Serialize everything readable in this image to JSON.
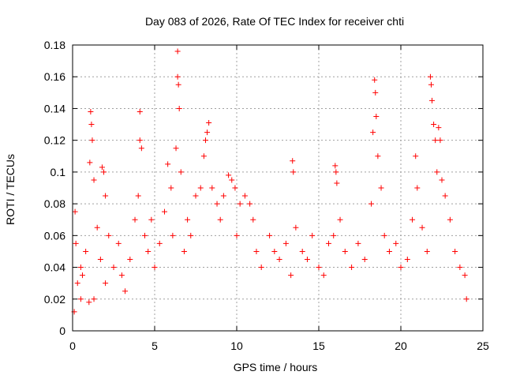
{
  "chart_data": {
    "type": "scatter",
    "title": "Day 083 of 2026, Rate Of TEC Index for receiver chti",
    "xlabel": "GPS time / hours",
    "ylabel": "ROTI / TECUs",
    "xlim": [
      0,
      25
    ],
    "ylim": [
      0,
      0.18
    ],
    "x_ticks": [
      0,
      5,
      10,
      15,
      20,
      25
    ],
    "x_tick_labels": [
      "0",
      "5",
      "10",
      "15",
      "20",
      "25"
    ],
    "y_ticks": [
      0,
      0.02,
      0.04,
      0.06,
      0.08,
      0.1,
      0.12,
      0.14,
      0.16,
      0.18
    ],
    "y_tick_labels": [
      "0",
      "0.02",
      "0.04",
      "0.06",
      "0.08",
      "0.1",
      "0.12",
      "0.14",
      "0.16",
      "0.18"
    ],
    "grid": true,
    "marker": "plus",
    "color": "#ff0000",
    "series": [
      {
        "points": [
          [
            0.1,
            0.012
          ],
          [
            0.15,
            0.075
          ],
          [
            0.2,
            0.055
          ],
          [
            0.3,
            0.03
          ],
          [
            0.5,
            0.02
          ],
          [
            0.5,
            0.04
          ],
          [
            0.6,
            0.035
          ],
          [
            0.8,
            0.05
          ],
          [
            1.0,
            0.018
          ],
          [
            1.05,
            0.106
          ],
          [
            1.1,
            0.138
          ],
          [
            1.15,
            0.13
          ],
          [
            1.2,
            0.12
          ],
          [
            1.3,
            0.095
          ],
          [
            1.3,
            0.02
          ],
          [
            1.5,
            0.065
          ],
          [
            1.7,
            0.045
          ],
          [
            1.8,
            0.103
          ],
          [
            1.9,
            0.1
          ],
          [
            2.0,
            0.085
          ],
          [
            2.0,
            0.03
          ],
          [
            2.2,
            0.06
          ],
          [
            2.5,
            0.04
          ],
          [
            2.8,
            0.055
          ],
          [
            3.0,
            0.035
          ],
          [
            3.2,
            0.025
          ],
          [
            3.5,
            0.045
          ],
          [
            3.8,
            0.07
          ],
          [
            4.0,
            0.085
          ],
          [
            4.1,
            0.138
          ],
          [
            4.1,
            0.12
          ],
          [
            4.2,
            0.115
          ],
          [
            4.4,
            0.06
          ],
          [
            4.6,
            0.05
          ],
          [
            4.8,
            0.07
          ],
          [
            5.0,
            0.04
          ],
          [
            5.3,
            0.055
          ],
          [
            5.6,
            0.075
          ],
          [
            5.8,
            0.105
          ],
          [
            6.0,
            0.09
          ],
          [
            6.1,
            0.06
          ],
          [
            6.3,
            0.115
          ],
          [
            6.4,
            0.176
          ],
          [
            6.4,
            0.16
          ],
          [
            6.45,
            0.155
          ],
          [
            6.5,
            0.14
          ],
          [
            6.6,
            0.1
          ],
          [
            6.8,
            0.05
          ],
          [
            7.0,
            0.07
          ],
          [
            7.2,
            0.06
          ],
          [
            7.5,
            0.085
          ],
          [
            7.8,
            0.09
          ],
          [
            8.0,
            0.11
          ],
          [
            8.1,
            0.12
          ],
          [
            8.2,
            0.125
          ],
          [
            8.3,
            0.131
          ],
          [
            8.5,
            0.09
          ],
          [
            8.8,
            0.08
          ],
          [
            9.0,
            0.07
          ],
          [
            9.2,
            0.085
          ],
          [
            9.5,
            0.098
          ],
          [
            9.7,
            0.095
          ],
          [
            9.9,
            0.09
          ],
          [
            10.0,
            0.06
          ],
          [
            10.2,
            0.08
          ],
          [
            10.5,
            0.085
          ],
          [
            10.8,
            0.08
          ],
          [
            11.0,
            0.07
          ],
          [
            11.2,
            0.05
          ],
          [
            11.5,
            0.04
          ],
          [
            12.0,
            0.06
          ],
          [
            12.3,
            0.05
          ],
          [
            12.6,
            0.045
          ],
          [
            13.0,
            0.055
          ],
          [
            13.3,
            0.035
          ],
          [
            13.4,
            0.107
          ],
          [
            13.45,
            0.1
          ],
          [
            13.6,
            0.065
          ],
          [
            14.0,
            0.05
          ],
          [
            14.3,
            0.045
          ],
          [
            14.6,
            0.06
          ],
          [
            15.0,
            0.04
          ],
          [
            15.3,
            0.035
          ],
          [
            15.6,
            0.055
          ],
          [
            15.9,
            0.06
          ],
          [
            16.0,
            0.104
          ],
          [
            16.05,
            0.1
          ],
          [
            16.1,
            0.093
          ],
          [
            16.3,
            0.07
          ],
          [
            16.6,
            0.05
          ],
          [
            17.0,
            0.04
          ],
          [
            17.4,
            0.055
          ],
          [
            17.8,
            0.045
          ],
          [
            18.2,
            0.08
          ],
          [
            18.3,
            0.125
          ],
          [
            18.4,
            0.158
          ],
          [
            18.45,
            0.15
          ],
          [
            18.5,
            0.135
          ],
          [
            18.6,
            0.11
          ],
          [
            18.8,
            0.09
          ],
          [
            19.0,
            0.06
          ],
          [
            19.3,
            0.05
          ],
          [
            19.7,
            0.055
          ],
          [
            20.0,
            0.04
          ],
          [
            20.4,
            0.045
          ],
          [
            20.7,
            0.07
          ],
          [
            20.9,
            0.11
          ],
          [
            21.0,
            0.09
          ],
          [
            21.3,
            0.065
          ],
          [
            21.6,
            0.05
          ],
          [
            21.8,
            0.16
          ],
          [
            21.85,
            0.155
          ],
          [
            21.9,
            0.145
          ],
          [
            22.0,
            0.13
          ],
          [
            22.1,
            0.12
          ],
          [
            22.2,
            0.1
          ],
          [
            22.3,
            0.128
          ],
          [
            22.4,
            0.12
          ],
          [
            22.5,
            0.095
          ],
          [
            22.7,
            0.085
          ],
          [
            23.0,
            0.07
          ],
          [
            23.3,
            0.05
          ],
          [
            23.6,
            0.04
          ],
          [
            23.9,
            0.035
          ],
          [
            24.0,
            0.02
          ]
        ]
      }
    ]
  }
}
